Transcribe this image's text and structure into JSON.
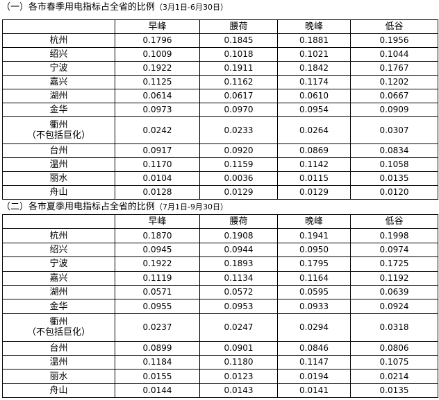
{
  "columns": [
    "早峰",
    "腰荷",
    "晚峰",
    "低谷"
  ],
  "tables": [
    {
      "title": "（一）各市春季用电指标占全省的比例",
      "range": "（3月1日-6月30日）",
      "rows": [
        {
          "city": "杭州",
          "values": [
            "0.1796",
            "0.1845",
            "0.1881",
            "0.1956"
          ]
        },
        {
          "city": "绍兴",
          "values": [
            "0.1009",
            "0.1018",
            "0.1021",
            "0.1044"
          ]
        },
        {
          "city": "宁波",
          "values": [
            "0.1922",
            "0.1911",
            "0.1842",
            "0.1767"
          ]
        },
        {
          "city": "嘉兴",
          "values": [
            "0.1125",
            "0.1162",
            "0.1174",
            "0.1202"
          ]
        },
        {
          "city": "湖州",
          "values": [
            "0.0614",
            "0.0617",
            "0.0610",
            "0.0667"
          ]
        },
        {
          "city": "金华",
          "values": [
            "0.0973",
            "0.0970",
            "0.0954",
            "0.0909"
          ]
        },
        {
          "city": "衢州",
          "note": "（不包括巨化）",
          "values": [
            "0.0242",
            "0.0233",
            "0.0264",
            "0.0307"
          ]
        },
        {
          "city": "台州",
          "values": [
            "0.0917",
            "0.0920",
            "0.0869",
            "0.0834"
          ]
        },
        {
          "city": "温州",
          "values": [
            "0.1170",
            "0.1159",
            "0.1142",
            "0.1058"
          ]
        },
        {
          "city": "丽水",
          "values": [
            "0.0104",
            "0.0036",
            "0.0115",
            "0.0135"
          ]
        },
        {
          "city": "舟山",
          "values": [
            "0.0128",
            "0.0129",
            "0.0129",
            "0.0120"
          ]
        }
      ]
    },
    {
      "title": "（二）各市夏季用电指标占全省的比例",
      "range": "（7月1日-9月30日）",
      "rows": [
        {
          "city": "杭州",
          "values": [
            "0.1870",
            "0.1908",
            "0.1941",
            "0.1998"
          ]
        },
        {
          "city": "绍兴",
          "values": [
            "0.0945",
            "0.0944",
            "0.0950",
            "0.0974"
          ]
        },
        {
          "city": "宁波",
          "values": [
            "0.1922",
            "0.1893",
            "0.1795",
            "0.1725"
          ]
        },
        {
          "city": "嘉兴",
          "values": [
            "0.1119",
            "0.1134",
            "0.1164",
            "0.1192"
          ]
        },
        {
          "city": "湖州",
          "values": [
            "0.0571",
            "0.0572",
            "0.0595",
            "0.0639"
          ]
        },
        {
          "city": "金华",
          "values": [
            "0.0955",
            "0.0953",
            "0.0933",
            "0.0924"
          ]
        },
        {
          "city": "衢州",
          "note": "（不包括巨化）",
          "values": [
            "0.0237",
            "0.0247",
            "0.0294",
            "0.0318"
          ]
        },
        {
          "city": "台州",
          "values": [
            "0.0899",
            "0.0901",
            "0.0846",
            "0.0806"
          ]
        },
        {
          "city": "温州",
          "values": [
            "0.1184",
            "0.1180",
            "0.1147",
            "0.1075"
          ]
        },
        {
          "city": "丽水",
          "values": [
            "0.0155",
            "0.0123",
            "0.0194",
            "0.0214"
          ]
        },
        {
          "city": "舟山",
          "values": [
            "0.0144",
            "0.0143",
            "0.0141",
            "0.0135"
          ]
        }
      ]
    }
  ]
}
